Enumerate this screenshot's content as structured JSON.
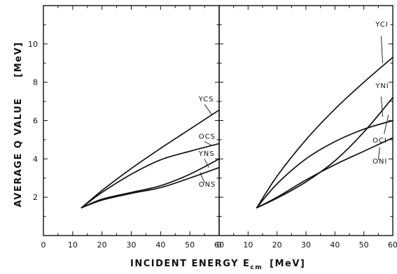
{
  "chart_data": [
    {
      "type": "line",
      "panel": "left",
      "xlim": [
        0,
        60
      ],
      "ylim": [
        0,
        12
      ],
      "x_ticks": [
        "0",
        "10",
        "20",
        "30",
        "40",
        "50",
        "60"
      ],
      "y_ticks": [
        "2",
        "4",
        "6",
        "8",
        "10"
      ],
      "series": [
        {
          "name": "YCS",
          "x": [
            13,
            20,
            30,
            40,
            50,
            60
          ],
          "y": [
            1.45,
            2.35,
            3.5,
            4.55,
            5.55,
            6.55
          ]
        },
        {
          "name": "OCS",
          "x": [
            13,
            20,
            30,
            40,
            50,
            60
          ],
          "y": [
            1.45,
            2.25,
            3.2,
            3.95,
            4.4,
            4.8
          ]
        },
        {
          "name": "YNS",
          "x": [
            13,
            20,
            30,
            40,
            50,
            60
          ],
          "y": [
            1.45,
            1.9,
            2.25,
            2.6,
            3.2,
            4.0
          ]
        },
        {
          "name": "ONS",
          "x": [
            13,
            20,
            30,
            40,
            50,
            60
          ],
          "y": [
            1.45,
            1.85,
            2.2,
            2.5,
            3.0,
            3.55
          ]
        }
      ]
    },
    {
      "type": "line",
      "panel": "right",
      "xlim": [
        0,
        60
      ],
      "ylim": [
        0,
        12
      ],
      "x_ticks": [
        "0",
        "10",
        "20",
        "30",
        "40",
        "50",
        "60"
      ],
      "series": [
        {
          "name": "YCI",
          "x": [
            13,
            20,
            30,
            40,
            50,
            60
          ],
          "y": [
            1.45,
            3.1,
            5.0,
            6.6,
            8.0,
            9.3
          ]
        },
        {
          "name": "YNI",
          "x": [
            13,
            20,
            30,
            40,
            50,
            60
          ],
          "y": [
            1.45,
            1.95,
            2.8,
            3.9,
            5.4,
            7.2
          ]
        },
        {
          "name": "OCI",
          "x": [
            13,
            20,
            30,
            40,
            50,
            60
          ],
          "y": [
            1.45,
            2.7,
            4.0,
            4.9,
            5.55,
            6.0
          ]
        },
        {
          "name": "ONI",
          "x": [
            13,
            20,
            30,
            40,
            50,
            60
          ],
          "y": [
            1.45,
            2.0,
            2.9,
            3.7,
            4.4,
            5.1
          ]
        }
      ]
    }
  ],
  "labels": {
    "ylabel": "AVERAGE  Q  VALUE",
    "yunit": "[MeV]",
    "xlabel_main": "INCIDENT ENERGY  E",
    "xlabel_sub": "cm",
    "xunit": "[MeV]"
  }
}
